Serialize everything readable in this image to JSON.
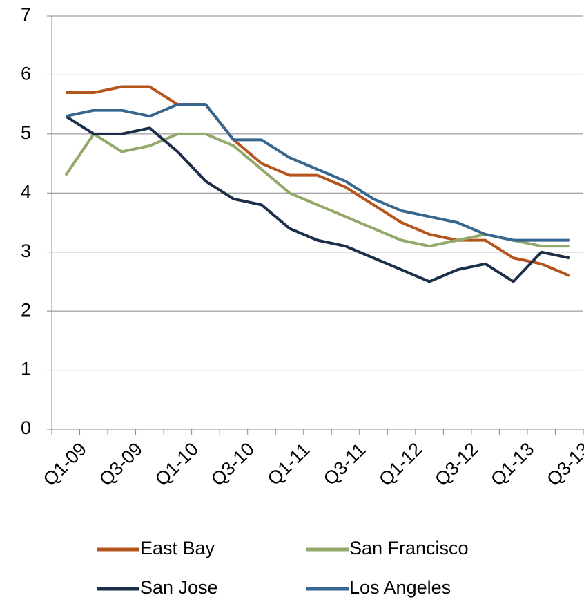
{
  "chart_data": {
    "type": "line",
    "categories": [
      "Q1-09",
      null,
      "Q3-09",
      null,
      "Q1-10",
      null,
      "Q3-10",
      null,
      "Q1-11",
      null,
      "Q3-11",
      null,
      "Q1-12",
      null,
      "Q3-12",
      null,
      "Q1-13",
      null,
      "Q3-13"
    ],
    "series": [
      {
        "name": "East Bay",
        "color": "#b5541d",
        "values": [
          5.7,
          5.7,
          5.8,
          5.8,
          5.5,
          5.5,
          4.9,
          4.5,
          4.3,
          4.3,
          4.1,
          3.8,
          3.5,
          3.3,
          3.2,
          3.2,
          2.9,
          2.8,
          2.6
        ]
      },
      {
        "name": "San Francisco",
        "color": "#93a86b",
        "values": [
          4.3,
          5.0,
          4.7,
          4.8,
          5.0,
          5.0,
          4.8,
          4.4,
          4.0,
          3.8,
          3.6,
          3.4,
          3.2,
          3.1,
          3.2,
          3.3,
          3.2,
          3.1,
          3.1
        ]
      },
      {
        "name": "San Jose",
        "color": "#1c2e4a",
        "values": [
          5.3,
          5.0,
          5.0,
          5.1,
          4.7,
          4.2,
          3.9,
          3.8,
          3.4,
          3.2,
          3.1,
          2.9,
          2.7,
          2.5,
          2.7,
          2.8,
          2.5,
          3.0,
          2.9
        ]
      },
      {
        "name": "Los Angeles",
        "color": "#37668f",
        "values": [
          5.3,
          5.4,
          5.4,
          5.3,
          5.5,
          5.5,
          4.9,
          4.9,
          4.6,
          4.4,
          4.2,
          3.9,
          3.7,
          3.6,
          3.5,
          3.3,
          3.2,
          3.2,
          3.2
        ]
      }
    ],
    "ylim": [
      0,
      7
    ],
    "yticks": [
      0,
      1,
      2,
      3,
      4,
      5,
      6,
      7
    ],
    "grid": true
  }
}
